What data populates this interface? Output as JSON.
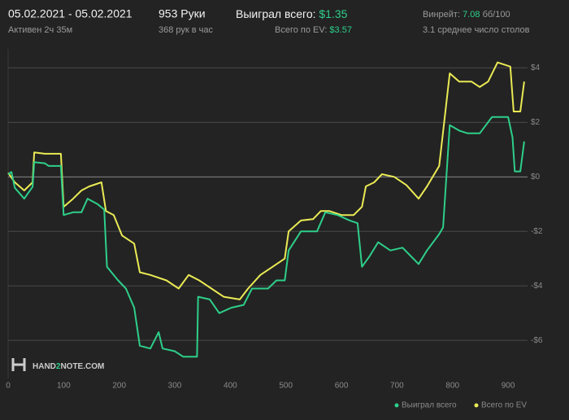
{
  "header": {
    "date_range": "05.02.2021 - 05.02.2021",
    "active": "Активен 2ч 35м",
    "hands": "953 Руки",
    "hands_per_hour": "368 рук в час",
    "won_label": "Выиграл всего:",
    "won_value": "$1.35",
    "ev_label": "Всего по EV:",
    "ev_value": "$3.57",
    "winrate_label": "Винрейт:",
    "winrate_value": "7.08",
    "winrate_unit": "бб/100",
    "tables": "3.1 среднее число столов",
    "logo": [
      "HAND",
      "2",
      "NOTE.COM"
    ]
  },
  "chart_data": {
    "type": "line",
    "xlim": [
      0,
      935
    ],
    "xticks": [
      0,
      100,
      200,
      300,
      400,
      500,
      600,
      700,
      800,
      900
    ],
    "ylim": [
      -7.4,
      4.7
    ],
    "yticks": [
      {
        "value": 4,
        "label": "$4"
      },
      {
        "value": 2,
        "label": "$2"
      },
      {
        "value": 0,
        "label": "$0"
      },
      {
        "value": -2,
        "label": "-$2"
      },
      {
        "value": -4,
        "label": "-$4"
      },
      {
        "value": -6,
        "label": "-$6"
      }
    ],
    "grid": true,
    "series": [
      {
        "name": "Выиграл всего",
        "color": "#2ecf8a",
        "x": [
          0,
          6,
          12,
          29,
          44,
          47,
          66,
          73,
          95,
          100,
          117,
          132,
          143,
          161,
          173,
          178,
          198,
          212,
          227,
          237,
          256,
          271,
          278,
          300,
          315,
          329,
          340,
          342,
          363,
          380,
          402,
          424,
          439,
          468,
          483,
          498,
          505,
          527,
          556,
          571,
          593,
          615,
          629,
          637,
          651,
          666,
          688,
          710,
          739,
          754,
          776,
          783,
          795,
          812,
          827,
          849,
          871,
          900,
          908,
          912,
          922,
          929
        ],
        "values": [
          0.1,
          0.18,
          -0.4,
          -0.8,
          -0.36,
          0.54,
          0.5,
          0.4,
          0.4,
          -1.4,
          -1.3,
          -1.3,
          -0.8,
          -1.0,
          -1.2,
          -3.3,
          -3.8,
          -4.1,
          -4.8,
          -6.2,
          -6.3,
          -5.7,
          -6.3,
          -6.4,
          -6.6,
          -6.6,
          -6.6,
          -4.4,
          -4.5,
          -5.0,
          -4.8,
          -4.7,
          -4.1,
          -4.1,
          -3.8,
          -3.8,
          -2.7,
          -2.0,
          -2.0,
          -1.3,
          -1.4,
          -1.6,
          -1.7,
          -3.3,
          -2.9,
          -2.4,
          -2.7,
          -2.6,
          -3.2,
          -2.7,
          -2.1,
          -1.85,
          1.9,
          1.7,
          1.6,
          1.6,
          2.2,
          2.2,
          1.45,
          0.2,
          0.2,
          1.3
        ]
      },
      {
        "name": "Всего по EV",
        "color": "#eaea55",
        "x": [
          0,
          12,
          29,
          44,
          47,
          66,
          95,
          100,
          117,
          132,
          146,
          168,
          176,
          190,
          205,
          227,
          237,
          256,
          285,
          307,
          325,
          344,
          366,
          388,
          417,
          432,
          454,
          476,
          498,
          505,
          527,
          549,
          563,
          578,
          600,
          622,
          637,
          644,
          659,
          673,
          695,
          717,
          739,
          754,
          776,
          795,
          812,
          834,
          849,
          864,
          881,
          904,
          910,
          922,
          929
        ],
        "values": [
          0.15,
          -0.2,
          -0.5,
          -0.2,
          0.9,
          0.85,
          0.85,
          -1.1,
          -0.8,
          -0.5,
          -0.35,
          -0.2,
          -1.25,
          -1.4,
          -2.15,
          -2.45,
          -3.5,
          -3.6,
          -3.8,
          -4.1,
          -3.6,
          -3.8,
          -4.1,
          -4.4,
          -4.5,
          -4.1,
          -3.6,
          -3.3,
          -3.0,
          -2.0,
          -1.6,
          -1.55,
          -1.25,
          -1.25,
          -1.4,
          -1.4,
          -1.1,
          -0.35,
          -0.2,
          0.1,
          0.0,
          -0.3,
          -0.8,
          -0.35,
          0.4,
          3.8,
          3.5,
          3.5,
          3.3,
          3.5,
          4.2,
          4.05,
          2.4,
          2.4,
          3.5
        ]
      }
    ]
  }
}
